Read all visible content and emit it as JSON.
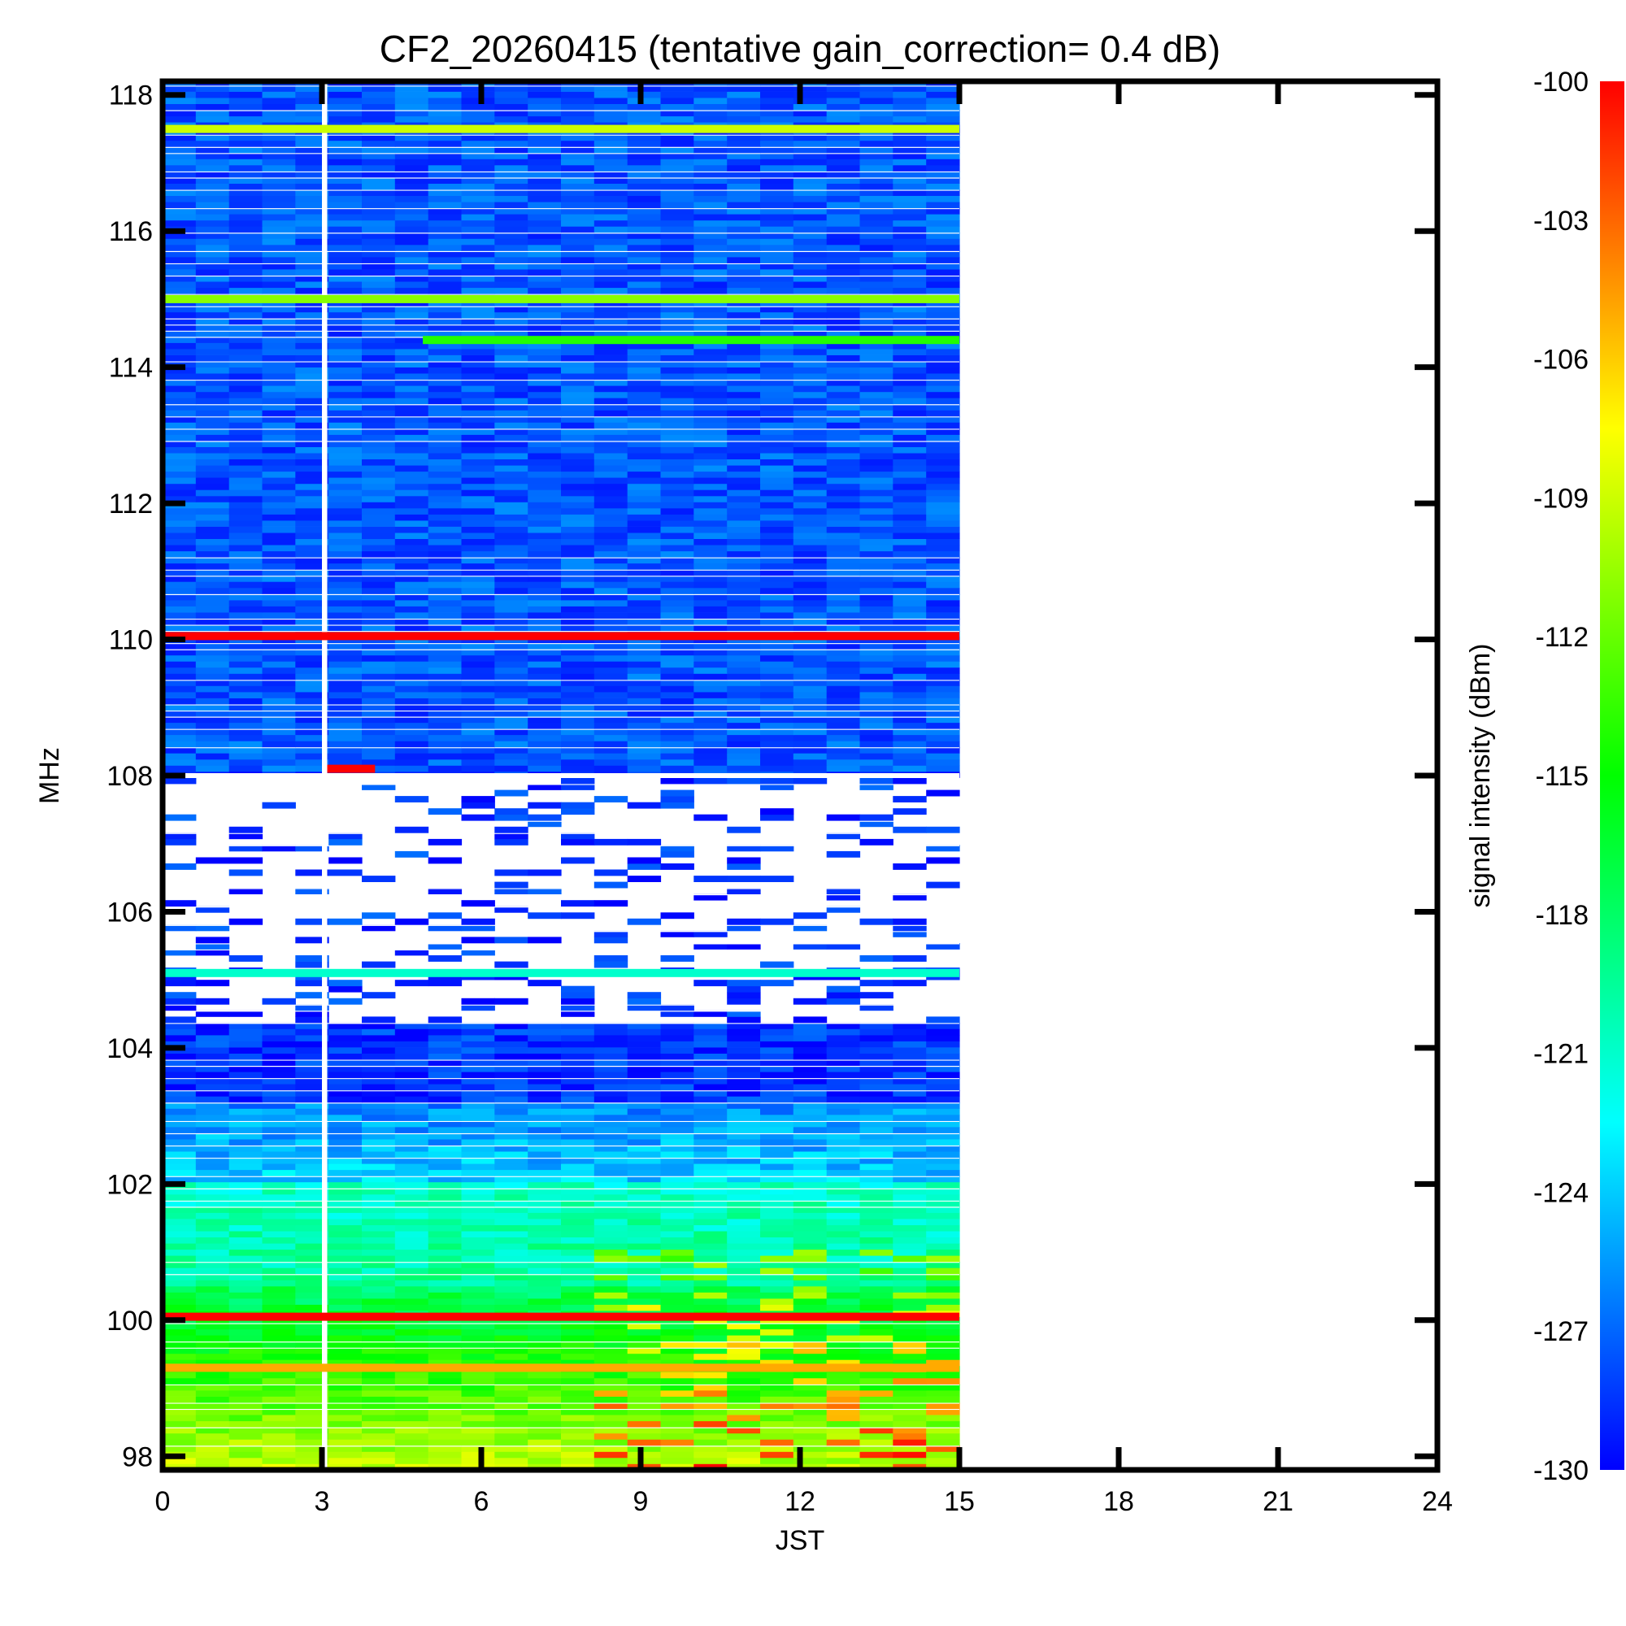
{
  "chart_data": {
    "type": "heatmap",
    "title": "CF2_20260415 (tentative gain_correction=  0.4 dB)",
    "xlabel": "JST",
    "ylabel": "MHz",
    "colorbar_label": "signal intensity (dBm)",
    "xlim": [
      0,
      24
    ],
    "ylim": [
      97.8,
      118.2
    ],
    "x_ticks": [
      0,
      3,
      6,
      9,
      12,
      15,
      18,
      21,
      24
    ],
    "y_ticks": [
      98,
      100,
      102,
      104,
      106,
      108,
      110,
      112,
      114,
      116,
      118
    ],
    "color_range": [
      -130,
      -100
    ],
    "colorbar_ticks": [
      -100,
      -103,
      -106,
      -109,
      -112,
      -115,
      -118,
      -121,
      -124,
      -127,
      -130
    ],
    "data_coverage_hours": [
      0,
      15
    ],
    "data_gap_hours": [
      3.0,
      3.1
    ],
    "colormap": [
      "#0000ff",
      "#00ffff",
      "#00ff00",
      "#ffff00",
      "#ff0000"
    ],
    "signal_lines": [
      {
        "freq_mhz": 117.5,
        "start_h": 0,
        "end_h": 15,
        "dbm": -109
      },
      {
        "freq_mhz": 115.0,
        "start_h": 0,
        "end_h": 15,
        "dbm": -111
      },
      {
        "freq_mhz": 114.4,
        "start_h": 4.9,
        "end_h": 15,
        "dbm": -114
      },
      {
        "freq_mhz": 110.05,
        "start_h": 0,
        "end_h": 15,
        "dbm": -100
      },
      {
        "freq_mhz": 108.1,
        "start_h": 3.1,
        "end_h": 4.0,
        "dbm": -100
      },
      {
        "freq_mhz": 105.1,
        "start_h": 0,
        "end_h": 15,
        "dbm": -121
      },
      {
        "freq_mhz": 100.05,
        "start_h": 0,
        "end_h": 15,
        "dbm": -100
      },
      {
        "freq_mhz": 99.3,
        "start_h": 0,
        "end_h": 15,
        "dbm": -105
      }
    ]
  }
}
